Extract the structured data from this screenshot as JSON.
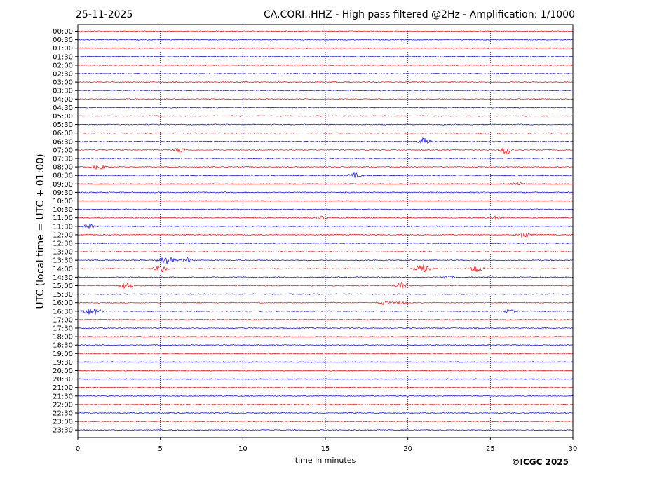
{
  "chart_data": {
    "type": "line",
    "title_left": "25-11-2025",
    "title": "CA.CORI..HHZ - High pass filtered @2Hz - Amplification: 1/1000",
    "xlabel": "time in minutes",
    "ylabel": "UTC (local time = UTC + 01:00)",
    "xlim": [
      0,
      30
    ],
    "x_ticks": [
      0,
      5,
      10,
      15,
      20,
      25,
      30
    ],
    "grid_x": [
      5,
      10,
      15,
      20,
      25
    ],
    "trace_colors": [
      "#ff0000",
      "#0000ff"
    ],
    "rows": [
      "00:00",
      "00:30",
      "01:00",
      "01:30",
      "02:00",
      "02:30",
      "03:00",
      "03:30",
      "04:00",
      "04:30",
      "05:00",
      "05:30",
      "06:00",
      "06:30",
      "07:00",
      "07:30",
      "08:00",
      "08:30",
      "09:00",
      "09:30",
      "10:00",
      "10:30",
      "11:00",
      "11:30",
      "12:00",
      "12:30",
      "13:00",
      "13:30",
      "14:00",
      "14:30",
      "15:00",
      "15:30",
      "16:00",
      "16:30",
      "17:00",
      "17:30",
      "18:00",
      "18:30",
      "19:00",
      "19:30",
      "20:00",
      "20:30",
      "21:00",
      "21:30",
      "22:00",
      "22:30",
      "23:00",
      "23:30"
    ],
    "events": [
      {
        "row": "06:30",
        "minute": 21.0,
        "amplitude": 0.5
      },
      {
        "row": "07:00",
        "minute": 6.2,
        "amplitude": 0.4
      },
      {
        "row": "07:00",
        "minute": 26.0,
        "amplitude": 0.7
      },
      {
        "row": "08:00",
        "minute": 1.3,
        "amplitude": 0.4
      },
      {
        "row": "08:30",
        "minute": 16.8,
        "amplitude": 0.35
      },
      {
        "row": "09:00",
        "minute": 26.6,
        "amplitude": 0.3
      },
      {
        "row": "11:00",
        "minute": 14.8,
        "amplitude": 0.25
      },
      {
        "row": "11:00",
        "minute": 25.3,
        "amplitude": 0.25
      },
      {
        "row": "11:30",
        "minute": 0.7,
        "amplitude": 0.3
      },
      {
        "row": "12:00",
        "minute": 27.0,
        "amplitude": 0.45
      },
      {
        "row": "13:30",
        "minute": 5.4,
        "amplitude": 0.8
      },
      {
        "row": "13:30",
        "minute": 6.6,
        "amplitude": 0.4
      },
      {
        "row": "14:00",
        "minute": 5.0,
        "amplitude": 0.55
      },
      {
        "row": "14:00",
        "minute": 20.9,
        "amplitude": 0.7
      },
      {
        "row": "14:00",
        "minute": 24.2,
        "amplitude": 0.6
      },
      {
        "row": "14:30",
        "minute": 22.4,
        "amplitude": 0.25
      },
      {
        "row": "15:00",
        "minute": 3.0,
        "amplitude": 0.55
      },
      {
        "row": "15:00",
        "minute": 19.6,
        "amplitude": 0.6
      },
      {
        "row": "16:00",
        "minute": 18.5,
        "amplitude": 0.3
      },
      {
        "row": "16:00",
        "minute": 19.6,
        "amplitude": 0.25
      },
      {
        "row": "16:30",
        "minute": 0.6,
        "amplitude": 0.4
      },
      {
        "row": "16:30",
        "minute": 1.1,
        "amplitude": 0.4
      },
      {
        "row": "16:30",
        "minute": 26.2,
        "amplitude": 0.25
      }
    ]
  },
  "copyright": "©ICGC 2025"
}
